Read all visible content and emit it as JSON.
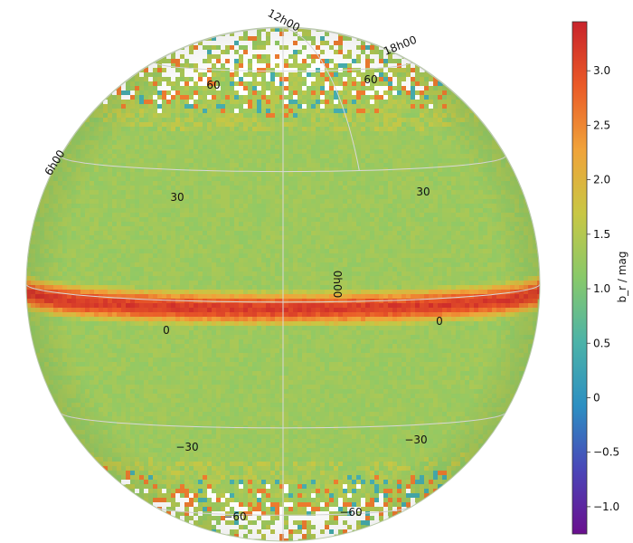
{
  "chart_data": {
    "type": "heatmap",
    "projection": "orthographic",
    "colormap": "spectral",
    "colormap_stops": [
      "#6a0f8e",
      "#4a46b8",
      "#2c8fc2",
      "#4cb3a8",
      "#88c96a",
      "#c8c744",
      "#f0a33a",
      "#ea5a27",
      "#c8232b"
    ],
    "missing_color": "#ffffff",
    "colorbar": {
      "label": "b_r / mag",
      "range": [
        -1.25,
        3.45
      ],
      "ticks": [
        -1.0,
        -0.5,
        0,
        0.5,
        1.0,
        1.5,
        2.0,
        2.5,
        3.0
      ],
      "tick_labels": [
        "−1.0",
        "−0.5",
        "0",
        "0.5",
        "1.0",
        "1.5",
        "2.0",
        "2.5",
        "3.0"
      ]
    },
    "graticule": {
      "latitude_lines": [
        -60,
        -30,
        0,
        30,
        60
      ],
      "longitude_lines": [
        "0h00",
        "6h00",
        "12h00",
        "18h00"
      ],
      "lat_labels": [
        {
          "text": "60",
          "lat": 60
        },
        {
          "text": "60",
          "lat": 60
        },
        {
          "text": "30",
          "lat": 30
        },
        {
          "text": "30",
          "lat": 30
        },
        {
          "text": "0",
          "lat": 0
        },
        {
          "text": "0",
          "lat": 0
        },
        {
          "text": "−30",
          "lat": -30
        },
        {
          "text": "−30",
          "lat": -30
        },
        {
          "text": "−60",
          "lat": -60
        },
        {
          "text": "−60",
          "lat": -60
        }
      ],
      "lon_labels": [
        {
          "text": "12h00",
          "lon": "12h00"
        },
        {
          "text": "18h00",
          "lon": "18h00"
        },
        {
          "text": "6h00",
          "lon": "6h00"
        },
        {
          "text": "0h00",
          "lon": "0h00"
        }
      ]
    },
    "field_summary": {
      "background_value": 1.3,
      "band_peak_value": 3.2,
      "band_latitude": 0,
      "sparse_regions": [
        "north-polar cap",
        "south-polar cap"
      ]
    }
  }
}
